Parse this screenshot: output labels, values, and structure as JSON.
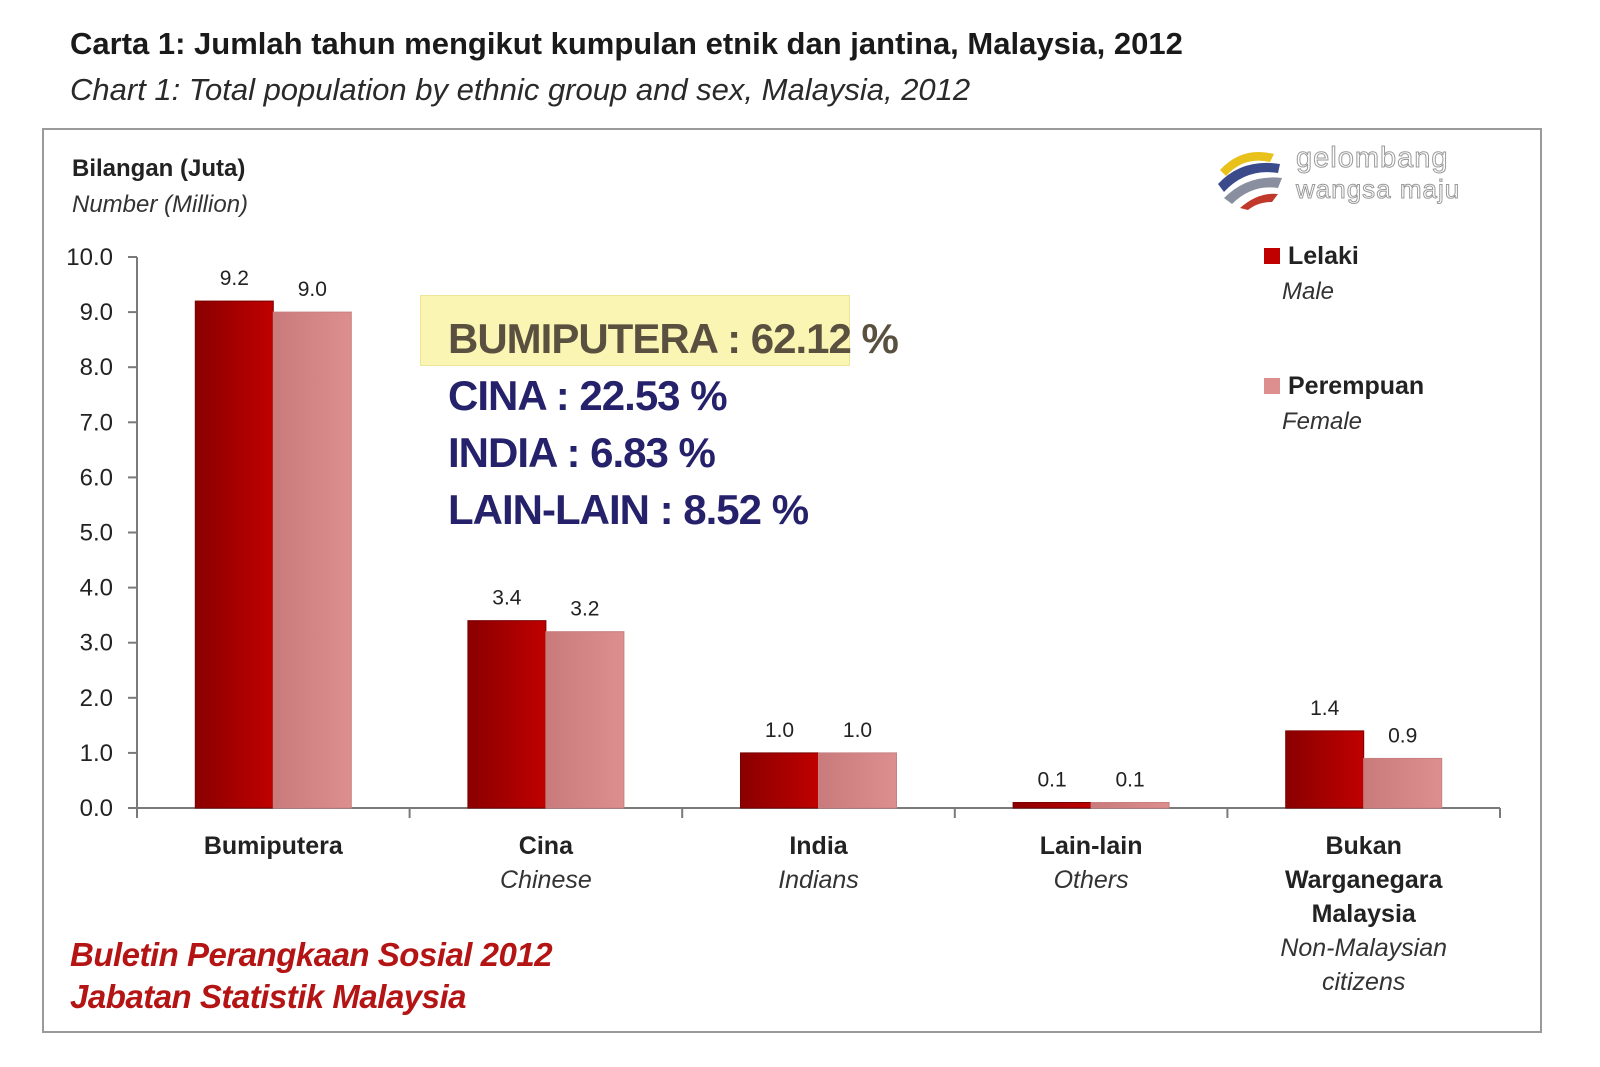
{
  "title": {
    "main": "Carta 1: Jumlah tahun mengikut kumpulan etnik dan jantina, Malaysia, 2012",
    "sub": "Chart 1: Total population by ethnic group and sex, Malaysia, 2012"
  },
  "logo": {
    "icon": "gelombang-swirl-logo-icon",
    "line1": "gelombang",
    "line2": "wangsa maju"
  },
  "shares": {
    "lines": [
      "BUMIPUTERA : 62.12 %",
      "CINA : 22.53 %",
      "INDIA : 6.83 %",
      "LAIN-LAIN : 8.52 %"
    ],
    "highlight_color": "#fbf5b4"
  },
  "source": {
    "line1": "Buletin Perangkaan Sosial 2012",
    "line2": "Jabatan Statistik Malaysia"
  },
  "chart_data": {
    "type": "bar",
    "title": "Carta 1: Jumlah tahun mengikut kumpulan etnik dan jantina, Malaysia, 2012",
    "subtitle": "Chart 1: Total population by ethnic group and sex, Malaysia, 2012",
    "ylabel": "Bilangan (Juta)",
    "ylabel_en": "Number (Million)",
    "xlabel": "",
    "ylim": [
      0,
      10
    ],
    "yticks": [
      "0.0",
      "1.0",
      "2.0",
      "3.0",
      "4.0",
      "5.0",
      "6.0",
      "7.0",
      "8.0",
      "9.0",
      "10.0"
    ],
    "grid": false,
    "legend_position": "top-right",
    "categories": [
      {
        "my": [
          "Bumiputera"
        ],
        "en": []
      },
      {
        "my": [
          "Cina"
        ],
        "en": [
          "Chinese"
        ]
      },
      {
        "my": [
          "India"
        ],
        "en": [
          "Indians"
        ]
      },
      {
        "my": [
          "Lain-lain"
        ],
        "en": [
          "Others"
        ]
      },
      {
        "my": [
          "Bukan",
          "Warganegara",
          "Malaysia"
        ],
        "en": [
          "Non-Malaysian",
          "citizens"
        ]
      }
    ],
    "series": [
      {
        "name": "Lelaki",
        "name_en": "Male",
        "color": "#c00000",
        "values": [
          9.2,
          3.4,
          1.0,
          0.1,
          1.4
        ],
        "labels": [
          "9.2",
          "3.4",
          "1.0",
          "0.1",
          "1.4"
        ]
      },
      {
        "name": "Perempuan",
        "name_en": "Female",
        "color": "#dd8e8e",
        "values": [
          9.0,
          3.2,
          1.0,
          0.1,
          0.9
        ],
        "labels": [
          "9.0",
          "3.2",
          "1.0",
          "0.1",
          "0.9"
        ]
      }
    ]
  }
}
